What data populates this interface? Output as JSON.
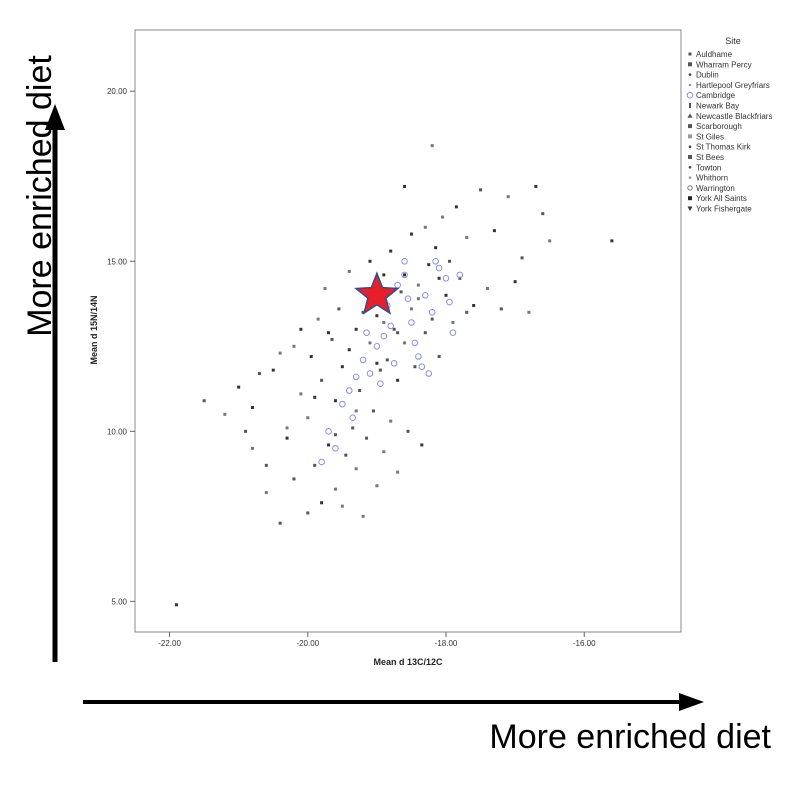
{
  "chart_data": {
    "type": "scatter",
    "xlabel": "Mean d 13C/12C",
    "ylabel": "Mean d 15N/14N",
    "xlim": [
      -22.5,
      -14.6
    ],
    "ylim": [
      4.1,
      21.8
    ],
    "x_ticks": [
      "-22.00",
      "-20.00",
      "-18.00",
      "-16.00"
    ],
    "y_ticks": [
      "5.00",
      "10.00",
      "15.00",
      "20.00"
    ],
    "grid": false,
    "legend": {
      "title": "Site",
      "placement": "right",
      "entries": [
        {
          "name": "Auldhame",
          "marker": "square-small"
        },
        {
          "name": "Wharram Percy",
          "marker": "square"
        },
        {
          "name": "Dublin",
          "marker": "dot"
        },
        {
          "name": "Hartlepool Greyfriars",
          "marker": "dot-light"
        },
        {
          "name": "Cambridge",
          "marker": "circle-open"
        },
        {
          "name": "Newark Bay",
          "marker": "bar"
        },
        {
          "name": "Newcastle Blackfriars",
          "marker": "triangle"
        },
        {
          "name": "Scarborough",
          "marker": "square"
        },
        {
          "name": "St Giles",
          "marker": "square-light"
        },
        {
          "name": "St Thomas Kirk",
          "marker": "dot"
        },
        {
          "name": "St Bees",
          "marker": "square"
        },
        {
          "name": "Towton",
          "marker": "dot"
        },
        {
          "name": "Whithorn",
          "marker": "dot-light"
        },
        {
          "name": "Warrington",
          "marker": "circle-gray"
        },
        {
          "name": "York All Saints",
          "marker": "square-dark"
        },
        {
          "name": "York Fishergate",
          "marker": "triangle-down"
        }
      ]
    },
    "highlight": {
      "x": -19.0,
      "y": 14.0,
      "marker": "star",
      "color": "#e5202a"
    },
    "points": [
      [
        -21.9,
        4.9
      ],
      [
        -21.5,
        10.9
      ],
      [
        -21.2,
        10.5
      ],
      [
        -21.0,
        11.3
      ],
      [
        -20.9,
        10.0
      ],
      [
        -20.8,
        9.5
      ],
      [
        -20.8,
        10.7
      ],
      [
        -20.6,
        9.0
      ],
      [
        -20.6,
        8.2
      ],
      [
        -20.5,
        11.8
      ],
      [
        -20.4,
        7.3
      ],
      [
        -20.4,
        12.3
      ],
      [
        -20.3,
        9.8
      ],
      [
        -20.2,
        8.6
      ],
      [
        -20.1,
        11.1
      ],
      [
        -20.1,
        13.0
      ],
      [
        -20.0,
        7.6
      ],
      [
        -20.0,
        10.4
      ],
      [
        -19.95,
        12.2
      ],
      [
        -19.9,
        9.0
      ],
      [
        -19.85,
        13.3
      ],
      [
        -19.8,
        7.9
      ],
      [
        -19.8,
        11.5
      ],
      [
        -19.75,
        14.2
      ],
      [
        -19.7,
        9.6
      ],
      [
        -19.65,
        12.7
      ],
      [
        -19.6,
        8.3
      ],
      [
        -19.6,
        10.9
      ],
      [
        -19.55,
        13.6
      ],
      [
        -19.5,
        7.8
      ],
      [
        -19.5,
        11.9
      ],
      [
        -19.45,
        9.3
      ],
      [
        -19.4,
        14.7
      ],
      [
        -19.4,
        12.4
      ],
      [
        -19.35,
        10.1
      ],
      [
        -19.3,
        8.9
      ],
      [
        -19.3,
        13.0
      ],
      [
        -19.25,
        11.2
      ],
      [
        -19.2,
        7.5
      ],
      [
        -19.2,
        14.1
      ],
      [
        -19.15,
        9.8
      ],
      [
        -19.1,
        12.6
      ],
      [
        -19.1,
        15.0
      ],
      [
        -19.05,
        10.6
      ],
      [
        -19.0,
        8.4
      ],
      [
        -19.0,
        13.4
      ],
      [
        -18.95,
        11.8
      ],
      [
        -18.9,
        9.4
      ],
      [
        -18.9,
        14.6
      ],
      [
        -18.85,
        12.1
      ],
      [
        -18.8,
        10.3
      ],
      [
        -18.8,
        15.3
      ],
      [
        -18.75,
        13.0
      ],
      [
        -18.7,
        8.8
      ],
      [
        -18.7,
        11.5
      ],
      [
        -18.65,
        14.1
      ],
      [
        -18.6,
        12.6
      ],
      [
        -18.6,
        17.2
      ],
      [
        -18.55,
        10.0
      ],
      [
        -18.5,
        13.6
      ],
      [
        -18.5,
        15.8
      ],
      [
        -18.45,
        11.9
      ],
      [
        -18.4,
        14.3
      ],
      [
        -18.35,
        9.6
      ],
      [
        -18.3,
        12.9
      ],
      [
        -18.3,
        16.0
      ],
      [
        -18.25,
        14.9
      ],
      [
        -18.2,
        13.3
      ],
      [
        -18.2,
        18.4
      ],
      [
        -18.15,
        15.4
      ],
      [
        -18.1,
        12.2
      ],
      [
        -18.05,
        16.3
      ],
      [
        -18.0,
        14.0
      ],
      [
        -17.95,
        15.0
      ],
      [
        -17.9,
        13.2
      ],
      [
        -17.85,
        16.6
      ],
      [
        -17.8,
        14.5
      ],
      [
        -17.7,
        15.7
      ],
      [
        -17.6,
        13.7
      ],
      [
        -17.5,
        17.1
      ],
      [
        -17.4,
        14.2
      ],
      [
        -17.3,
        15.9
      ],
      [
        -17.2,
        13.6
      ],
      [
        -17.1,
        16.9
      ],
      [
        -17.0,
        14.4
      ],
      [
        -16.9,
        15.1
      ],
      [
        -16.8,
        13.5
      ],
      [
        -16.7,
        17.2
      ],
      [
        -16.6,
        16.4
      ],
      [
        -16.5,
        15.6
      ],
      [
        -15.6,
        15.6
      ],
      [
        -20.7,
        11.7
      ],
      [
        -20.3,
        10.1
      ],
      [
        -19.9,
        11.0
      ],
      [
        -19.6,
        9.9
      ],
      [
        -19.3,
        10.6
      ],
      [
        -19.0,
        12.0
      ],
      [
        -18.7,
        12.9
      ],
      [
        -18.4,
        13.9
      ],
      [
        -18.1,
        14.5
      ],
      [
        -17.7,
        13.5
      ],
      [
        -20.2,
        12.5
      ],
      [
        -19.7,
        12.9
      ],
      [
        -19.2,
        13.5
      ],
      [
        -18.9,
        13.2
      ],
      [
        -18.6,
        14.6
      ]
    ],
    "cambridge_points": [
      [
        -19.7,
        10.0
      ],
      [
        -19.6,
        9.5
      ],
      [
        -19.5,
        10.8
      ],
      [
        -19.4,
        11.2
      ],
      [
        -19.3,
        11.6
      ],
      [
        -19.2,
        12.1
      ],
      [
        -19.1,
        11.7
      ],
      [
        -19.0,
        12.5
      ],
      [
        -18.9,
        12.8
      ],
      [
        -18.85,
        13.7
      ],
      [
        -18.8,
        13.1
      ],
      [
        -18.7,
        14.3
      ],
      [
        -18.6,
        14.6
      ],
      [
        -18.55,
        13.9
      ],
      [
        -18.5,
        13.2
      ],
      [
        -18.45,
        12.6
      ],
      [
        -18.4,
        12.2
      ],
      [
        -18.35,
        11.9
      ],
      [
        -18.3,
        14.0
      ],
      [
        -18.2,
        13.5
      ],
      [
        -18.1,
        14.8
      ],
      [
        -18.0,
        14.5
      ],
      [
        -17.95,
        13.8
      ],
      [
        -17.9,
        12.9
      ],
      [
        -18.6,
        15.0
      ],
      [
        -18.95,
        11.4
      ],
      [
        -19.15,
        12.9
      ],
      [
        -19.35,
        10.4
      ],
      [
        -18.25,
        11.7
      ],
      [
        -19.8,
        9.1
      ],
      [
        -18.75,
        12.0
      ],
      [
        -18.15,
        15.0
      ],
      [
        -17.8,
        14.6
      ]
    ]
  },
  "annotations": {
    "x_arrow_label": "More enriched diet",
    "y_arrow_label": "More enriched diet"
  }
}
